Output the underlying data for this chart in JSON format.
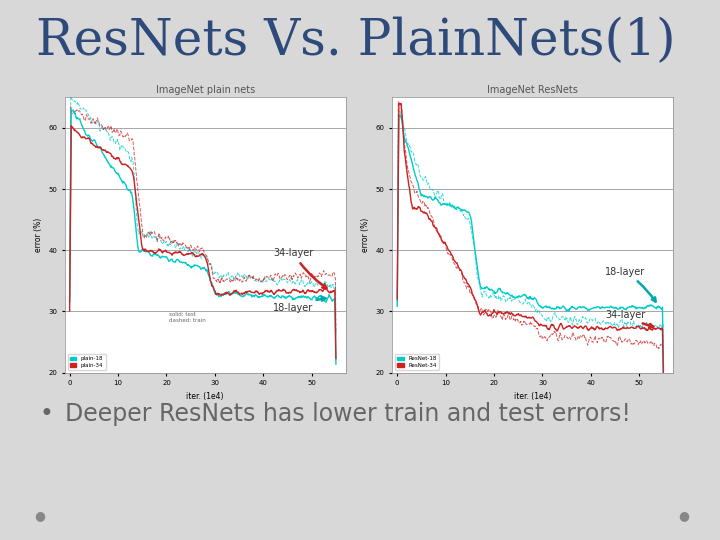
{
  "title": "ResNets Vs. PlainNets(1)",
  "title_color": "#2E4A7A",
  "title_fontsize": 36,
  "bullet_text": "Deeper ResNets has lower train and test errors!",
  "bullet_fontsize": 17,
  "bullet_color": "#666666",
  "background_color": "#D8D8D8",
  "left_chart_title": "ImageNet plain nets",
  "right_chart_title": "ImageNet ResNets",
  "xlabel": "iter. (1e4)",
  "ylabel": "error (%)",
  "plain18_color": "#00CCCC",
  "plain34_color": "#CC2222",
  "resnet18_color": "#00CCCC",
  "resnet34_color": "#CC2222",
  "annotation_34layer_plain": "34-layer",
  "annotation_18layer_plain": "18-layer",
  "annotation_18layer_res": "18-layer",
  "annotation_34layer_res": "34-layer",
  "legend_left": [
    "plain-18",
    "plain-34"
  ],
  "legend_right": [
    "ResNet-18",
    "ResNet-34"
  ]
}
